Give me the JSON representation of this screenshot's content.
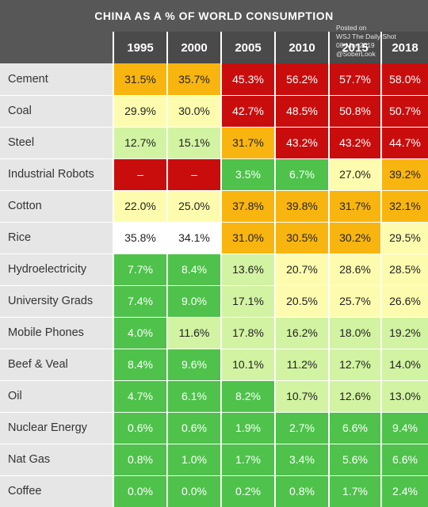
{
  "chart_data": {
    "type": "table",
    "title": "CHINA AS A % OF WORLD CONSUMPTION",
    "columns": [
      "1995",
      "2000",
      "2005",
      "2010",
      "2015",
      "2018"
    ],
    "rows": [
      {
        "label": "Cement",
        "values": [
          "31.5%",
          "35.7%",
          "45.3%",
          "56.2%",
          "57.7%",
          "58.0%"
        ],
        "colors": [
          "#f9b50f",
          "#f9b50f",
          "#c90d0d",
          "#c90d0d",
          "#c90d0d",
          "#c90d0d"
        ]
      },
      {
        "label": "Coal",
        "values": [
          "29.9%",
          "30.0%",
          "42.7%",
          "48.5%",
          "50.8%",
          "50.7%"
        ],
        "colors": [
          "#fdfcae",
          "#fdfcae",
          "#c90d0d",
          "#c90d0d",
          "#c90d0d",
          "#c90d0d"
        ]
      },
      {
        "label": "Steel",
        "values": [
          "12.7%",
          "15.1%",
          "31.7%",
          "43.2%",
          "43.2%",
          "44.7%"
        ],
        "colors": [
          "#d2f3a2",
          "#d2f3a2",
          "#f9b50f",
          "#c90d0d",
          "#c90d0d",
          "#c90d0d"
        ]
      },
      {
        "label": "Industrial Robots",
        "values": [
          "–",
          "–",
          "3.5%",
          "6.7%",
          "27.0%",
          "39.2%"
        ],
        "colors": [
          "#c90d0d",
          "#c90d0d",
          "#4ec24a",
          "#4ec24a",
          "#fdfcae",
          "#f9b50f"
        ]
      },
      {
        "label": "Cotton",
        "values": [
          "22.0%",
          "25.0%",
          "37.8%",
          "39.8%",
          "31.7%",
          "32.1%"
        ],
        "colors": [
          "#fdfcae",
          "#fdfcae",
          "#f9b50f",
          "#f9b50f",
          "#f9b50f",
          "#f9b50f"
        ]
      },
      {
        "label": "Rice",
        "values": [
          "35.8%",
          "34.1%",
          "31.0%",
          "30.5%",
          "30.2%",
          "29.5%"
        ],
        "colors": [
          "#ffffff",
          "#ffffff",
          "#f9b50f",
          "#f9b50f",
          "#f9b50f",
          "#fdfcae"
        ]
      },
      {
        "label": "Hydroelectricity",
        "values": [
          "7.7%",
          "8.4%",
          "13.6%",
          "20.7%",
          "28.6%",
          "28.5%"
        ],
        "colors": [
          "#4ec24a",
          "#4ec24a",
          "#d2f3a2",
          "#fdfcae",
          "#fdfcae",
          "#fdfcae"
        ]
      },
      {
        "label": "University Grads",
        "values": [
          "7.4%",
          "9.0%",
          "17.1%",
          "20.5%",
          "25.7%",
          "26.6%"
        ],
        "colors": [
          "#4ec24a",
          "#4ec24a",
          "#d2f3a2",
          "#fdfcae",
          "#fdfcae",
          "#fdfcae"
        ]
      },
      {
        "label": "Mobile Phones",
        "values": [
          "4.0%",
          "11.6%",
          "17.8%",
          "16.2%",
          "18.0%",
          "19.2%"
        ],
        "colors": [
          "#4ec24a",
          "#d2f3a2",
          "#d2f3a2",
          "#d2f3a2",
          "#d2f3a2",
          "#d2f3a2"
        ]
      },
      {
        "label": "Beef & Veal",
        "values": [
          "8.4%",
          "9.6%",
          "10.1%",
          "11.2%",
          "12.7%",
          "14.0%"
        ],
        "colors": [
          "#4ec24a",
          "#4ec24a",
          "#d2f3a2",
          "#d2f3a2",
          "#d2f3a2",
          "#d2f3a2"
        ]
      },
      {
        "label": "Oil",
        "values": [
          "4.7%",
          "6.1%",
          "8.2%",
          "10.7%",
          "12.6%",
          "13.0%"
        ],
        "colors": [
          "#4ec24a",
          "#4ec24a",
          "#4ec24a",
          "#d2f3a2",
          "#d2f3a2",
          "#d2f3a2"
        ]
      },
      {
        "label": "Nuclear Energy",
        "values": [
          "0.6%",
          "0.6%",
          "1.9%",
          "2.7%",
          "6.6%",
          "9.4%"
        ],
        "colors": [
          "#4ec24a",
          "#4ec24a",
          "#4ec24a",
          "#4ec24a",
          "#4ec24a",
          "#4ec24a"
        ]
      },
      {
        "label": "Nat Gas",
        "values": [
          "0.8%",
          "1.0%",
          "1.7%",
          "3.4%",
          "5.6%",
          "6.6%"
        ],
        "colors": [
          "#4ec24a",
          "#4ec24a",
          "#4ec24a",
          "#4ec24a",
          "#4ec24a",
          "#4ec24a"
        ]
      },
      {
        "label": "Coffee",
        "values": [
          "0.0%",
          "0.0%",
          "0.2%",
          "0.8%",
          "1.7%",
          "2.4%"
        ],
        "colors": [
          "#4ec24a",
          "#4ec24a",
          "#4ec24a",
          "#4ec24a",
          "#4ec24a",
          "#4ec24a"
        ]
      }
    ]
  },
  "watermark": [
    "Posted on",
    "WSJ The Daily Shot",
    "08-Mar-2019",
    "@SoberLook"
  ],
  "colors": {
    "header_bg": "#575757",
    "label_bg": "#e6e6e6",
    "red": "#c90d0d",
    "orange": "#f9b50f",
    "yellow": "#fdfcae",
    "light_green": "#d2f3a2",
    "green": "#4ec24a"
  }
}
